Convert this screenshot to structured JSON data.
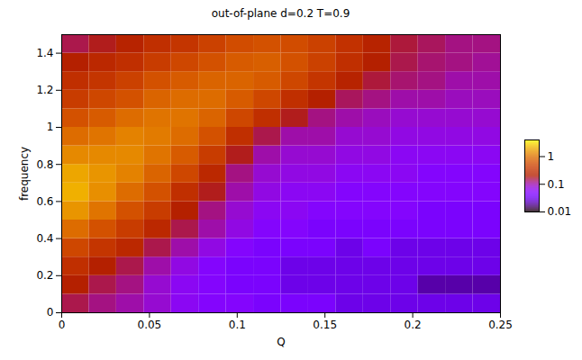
{
  "chart_data": {
    "type": "heatmap",
    "title": "out-of-plane d=0.2 T=0.9",
    "x_label": "Q",
    "y_label": "frequency",
    "xlim": [
      0,
      0.25
    ],
    "xticks": [
      0,
      0.05,
      0.1,
      0.15,
      0.2,
      0.25
    ],
    "ylim": [
      0,
      1.5
    ],
    "yticks": [
      0,
      0.2,
      0.4,
      0.6,
      0.8,
      1,
      1.2,
      1.4
    ],
    "xbins": [
      0,
      0.015625,
      0.03125,
      0.046875,
      0.0625,
      0.078125,
      0.09375,
      0.109375,
      0.125,
      0.140625,
      0.15625,
      0.171875,
      0.1875,
      0.203125,
      0.21875,
      0.234375,
      0.25
    ],
    "ybins": [
      0,
      0.1,
      0.2,
      0.3,
      0.4,
      0.5,
      0.6,
      0.7,
      0.8,
      0.9,
      1.0,
      1.1,
      1.2,
      1.3,
      1.4,
      1.5
    ],
    "values": [
      [
        0.15,
        0.12,
        0.1,
        0.08,
        0.06,
        0.05,
        0.05,
        0.04,
        0.04,
        0.04,
        0.03,
        0.03,
        0.03,
        0.03,
        0.03,
        0.03
      ],
      [
        0.2,
        0.15,
        0.12,
        0.08,
        0.06,
        0.05,
        0.04,
        0.04,
        0.03,
        0.03,
        0.03,
        0.03,
        0.03,
        0.02,
        0.02,
        0.02
      ],
      [
        0.3,
        0.2,
        0.15,
        0.1,
        0.07,
        0.05,
        0.04,
        0.04,
        0.03,
        0.03,
        0.03,
        0.03,
        0.03,
        0.03,
        0.03,
        0.03
      ],
      [
        0.5,
        0.35,
        0.25,
        0.15,
        0.1,
        0.07,
        0.05,
        0.04,
        0.04,
        0.04,
        0.03,
        0.04,
        0.03,
        0.03,
        0.03,
        0.03
      ],
      [
        0.9,
        0.6,
        0.4,
        0.25,
        0.15,
        0.1,
        0.07,
        0.05,
        0.05,
        0.04,
        0.04,
        0.04,
        0.04,
        0.04,
        0.04,
        0.04
      ],
      [
        1.5,
        1.0,
        0.6,
        0.4,
        0.2,
        0.12,
        0.08,
        0.06,
        0.06,
        0.05,
        0.05,
        0.05,
        0.05,
        0.04,
        0.04,
        0.04
      ],
      [
        2.0,
        1.4,
        0.9,
        0.6,
        0.3,
        0.18,
        0.1,
        0.07,
        0.06,
        0.06,
        0.05,
        0.05,
        0.05,
        0.05,
        0.05,
        0.05
      ],
      [
        1.8,
        1.5,
        1.2,
        0.8,
        0.5,
        0.25,
        0.12,
        0.08,
        0.07,
        0.07,
        0.06,
        0.06,
        0.06,
        0.05,
        0.05,
        0.05
      ],
      [
        1.3,
        1.3,
        1.3,
        1.0,
        0.7,
        0.4,
        0.18,
        0.1,
        0.08,
        0.08,
        0.07,
        0.07,
        0.06,
        0.06,
        0.06,
        0.06
      ],
      [
        0.9,
        1.0,
        1.2,
        1.1,
        0.9,
        0.6,
        0.3,
        0.15,
        0.1,
        0.1,
        0.08,
        0.08,
        0.07,
        0.07,
        0.07,
        0.07
      ],
      [
        0.6,
        0.7,
        0.9,
        1.0,
        1.0,
        0.8,
        0.5,
        0.3,
        0.18,
        0.12,
        0.1,
        0.09,
        0.08,
        0.08,
        0.08,
        0.08
      ],
      [
        0.4,
        0.5,
        0.6,
        0.8,
        0.9,
        0.9,
        0.7,
        0.5,
        0.3,
        0.2,
        0.14,
        0.12,
        0.1,
        0.1,
        0.09,
        0.09
      ],
      [
        0.3,
        0.35,
        0.45,
        0.6,
        0.7,
        0.8,
        0.8,
        0.7,
        0.5,
        0.35,
        0.22,
        0.16,
        0.13,
        0.12,
        0.1,
        0.1
      ],
      [
        0.2,
        0.25,
        0.3,
        0.4,
        0.5,
        0.6,
        0.7,
        0.75,
        0.6,
        0.45,
        0.3,
        0.2,
        0.15,
        0.13,
        0.12,
        0.11
      ],
      [
        0.15,
        0.18,
        0.22,
        0.3,
        0.35,
        0.45,
        0.55,
        0.6,
        0.55,
        0.45,
        0.32,
        0.22,
        0.16,
        0.14,
        0.12,
        0.12
      ]
    ],
    "colorbar": {
      "range": [
        0.01,
        4
      ],
      "ticks": [
        0.01,
        0.1,
        1
      ],
      "log": true
    }
  }
}
